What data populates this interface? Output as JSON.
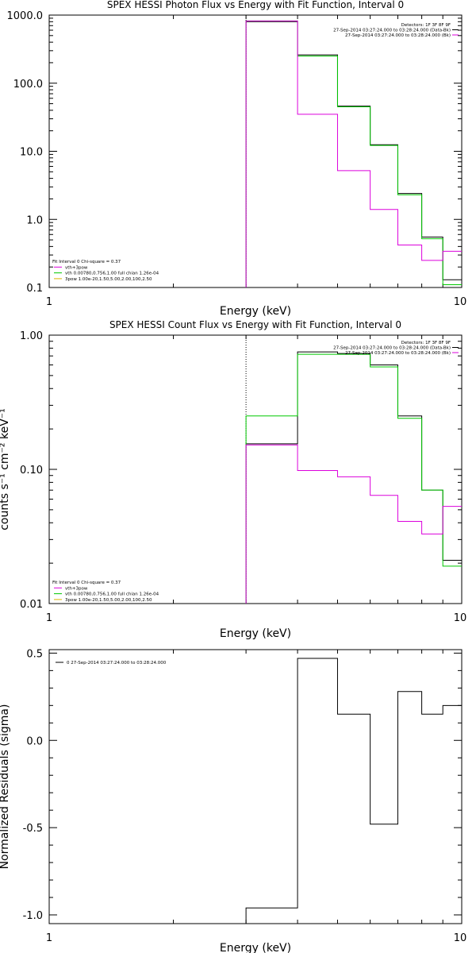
{
  "chart_data": [
    {
      "type": "line",
      "title": "SPEX HESSI Photon Flux vs Energy with Fit Function, Interval 0",
      "xlabel": "Energy (keV)",
      "ylabel": "",
      "xscale": "log",
      "yscale": "log",
      "xlim": [
        1,
        10
      ],
      "ylim": [
        0.1,
        1000.0
      ],
      "x_tick_labels": [
        "1",
        "10"
      ],
      "y_tick_labels": [
        "0.1",
        "1.0",
        "10.0",
        "100.0",
        "1000.0"
      ],
      "y_tick_values": [
        0.1,
        1,
        10,
        100,
        1000
      ],
      "dotted_vline_x": 3.0,
      "bin_edges": [
        3.0,
        4.0,
        5.0,
        6.0,
        7.0,
        8.0,
        9.0,
        10.0
      ],
      "series": [
        {
          "name": "",
          "color": "#000000",
          "values": [
            800,
            260,
            46,
            12.5,
            2.4,
            0.55,
            0.13
          ]
        },
        {
          "name": "",
          "color": "#00c800",
          "values": [
            820,
            250,
            45,
            12.2,
            2.3,
            0.52,
            0.11
          ]
        },
        {
          "name": "",
          "color": "#dc00dc",
          "values": [
            820,
            35,
            5.2,
            1.4,
            0.42,
            0.25,
            0.34
          ]
        }
      ],
      "legend_top": [
        {
          "text": "Detectors: 1F 3F 8F 9F",
          "color": "#000000"
        },
        {
          "text": "27-Sep-2014 03:27:24.000 to 03:28:24.000 (Data-Bk)",
          "color": "#000000"
        },
        {
          "text": "27-Sep-2014 03:27:24.000 to 03:28:24.000 (Bk)",
          "color": "#dc00dc"
        }
      ],
      "legend_bottom": [
        {
          "text": "Fit Interval 0   Chi-square = 0.37",
          "color": ""
        },
        {
          "text": "vth+3pow",
          "color": "#dc00dc"
        },
        {
          "text": "vth 0.00780,0.756,1.00  full chian 1.26e-04",
          "color": "#00c800"
        },
        {
          "text": "3pow 1.00e-20,1.50,5.00,2.00,100,2.50",
          "color": "#dcb400"
        }
      ]
    },
    {
      "type": "line",
      "title": "SPEX HESSI Count Flux vs Energy with Fit Function, Interval 0",
      "xlabel": "Energy (keV)",
      "ylabel": "counts s⁻¹ cm⁻² keV⁻¹",
      "xscale": "log",
      "yscale": "log",
      "xlim": [
        1,
        10
      ],
      "ylim": [
        0.01,
        1.0
      ],
      "x_tick_labels": [
        "1",
        "10"
      ],
      "y_tick_labels": [
        "0.01",
        "0.10",
        "1.00"
      ],
      "y_tick_values": [
        0.01,
        0.1,
        1.0
      ],
      "dotted_vline_x": 3.0,
      "bin_edges": [
        3.0,
        4.0,
        5.0,
        6.0,
        7.0,
        8.0,
        9.0,
        10.0
      ],
      "series": [
        {
          "name": "",
          "color": "#000000",
          "values": [
            0.155,
            0.75,
            0.73,
            0.6,
            0.25,
            0.07,
            0.021
          ]
        },
        {
          "name": "",
          "color": "#00c800",
          "values": [
            0.25,
            0.72,
            0.72,
            0.58,
            0.24,
            0.07,
            0.019
          ]
        },
        {
          "name": "",
          "color": "#dc00dc",
          "values": [
            0.152,
            0.098,
            0.088,
            0.064,
            0.041,
            0.033,
            0.053
          ]
        }
      ],
      "legend_top": [
        {
          "text": "Detectors: 1F 3F 8F 9F",
          "color": "#000000"
        },
        {
          "text": "27-Sep-2014 03:27:24.000 to 03:28:24.000 (Data-Bk)",
          "color": "#000000"
        },
        {
          "text": "27-Sep-2014 03:27:24.000 to 03:28:24.000 (Bk)",
          "color": "#dc00dc"
        }
      ],
      "legend_bottom": [
        {
          "text": "Fit Interval 0   Chi-square = 0.37",
          "color": ""
        },
        {
          "text": "vth+3pow",
          "color": "#dc00dc"
        },
        {
          "text": "vth 0.00780,0.756,1.00  full chian 1.26e-04",
          "color": "#00c800"
        },
        {
          "text": "3pow 1.00e-20,1.50,5.00,2.00,100,2.50",
          "color": "#dcb400"
        }
      ]
    },
    {
      "type": "line",
      "title": "",
      "xlabel": "Energy (keV)",
      "ylabel": "Normalized Residuals (sigma)",
      "xscale": "log",
      "yscale": "linear",
      "xlim": [
        1,
        10
      ],
      "ylim": [
        -1.05,
        0.52
      ],
      "x_tick_labels": [
        "1",
        "10"
      ],
      "y_tick_labels": [
        "-1.0",
        "-0.5",
        "0.0",
        "0.5"
      ],
      "y_tick_values": [
        -1.0,
        -0.5,
        0.0,
        0.5
      ],
      "bin_edges": [
        3.0,
        4.0,
        5.0,
        6.0,
        7.0,
        8.0,
        9.0,
        10.0
      ],
      "series": [
        {
          "name": "",
          "color": "#000000",
          "values": [
            -0.96,
            0.47,
            0.15,
            -0.48,
            0.28,
            0.15,
            0.2
          ]
        }
      ],
      "legend_top": [
        {
          "text": "0  27-Sep-2014 03:27:24.000 to 03:28:24.000",
          "color": "#000000"
        }
      ],
      "legend_bottom": []
    }
  ]
}
